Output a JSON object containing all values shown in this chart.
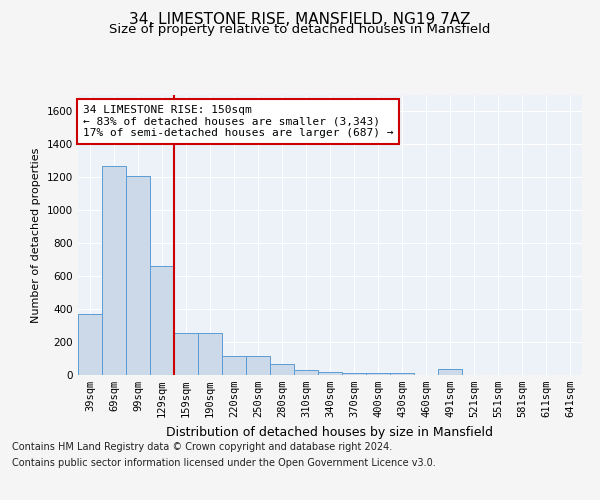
{
  "title": "34, LIMESTONE RISE, MANSFIELD, NG19 7AZ",
  "subtitle": "Size of property relative to detached houses in Mansfield",
  "xlabel": "Distribution of detached houses by size in Mansfield",
  "ylabel": "Number of detached properties",
  "categories": [
    "39sqm",
    "69sqm",
    "99sqm",
    "129sqm",
    "159sqm",
    "190sqm",
    "220sqm",
    "250sqm",
    "280sqm",
    "310sqm",
    "340sqm",
    "370sqm",
    "400sqm",
    "430sqm",
    "460sqm",
    "491sqm",
    "521sqm",
    "551sqm",
    "581sqm",
    "611sqm",
    "641sqm"
  ],
  "values": [
    370,
    1270,
    1210,
    660,
    255,
    258,
    115,
    115,
    65,
    30,
    20,
    15,
    10,
    10,
    0,
    35,
    0,
    0,
    0,
    0,
    0
  ],
  "bar_color": "#ccd9e8",
  "bar_edge_color": "#5b9bd5",
  "highlight_line_color": "#cc0000",
  "annotation_line1": "34 LIMESTONE RISE: 150sqm",
  "annotation_line2": "← 83% of detached houses are smaller (3,343)",
  "annotation_line3": "17% of semi-detached houses are larger (687) →",
  "annotation_box_color": "#cc0000",
  "ylim": [
    0,
    1700
  ],
  "yticks": [
    0,
    200,
    400,
    600,
    800,
    1000,
    1200,
    1400,
    1600
  ],
  "footer_line1": "Contains HM Land Registry data © Crown copyright and database right 2024.",
  "footer_line2": "Contains public sector information licensed under the Open Government Licence v3.0.",
  "bg_color": "#e8eef5",
  "plot_bg_color": "#edf2f8",
  "grid_color": "#ffffff",
  "fig_bg_color": "#f5f5f5",
  "title_fontsize": 11,
  "subtitle_fontsize": 9.5,
  "ylabel_fontsize": 8,
  "xlabel_fontsize": 9,
  "tick_fontsize": 7.5,
  "annotation_fontsize": 8,
  "footer_fontsize": 7
}
